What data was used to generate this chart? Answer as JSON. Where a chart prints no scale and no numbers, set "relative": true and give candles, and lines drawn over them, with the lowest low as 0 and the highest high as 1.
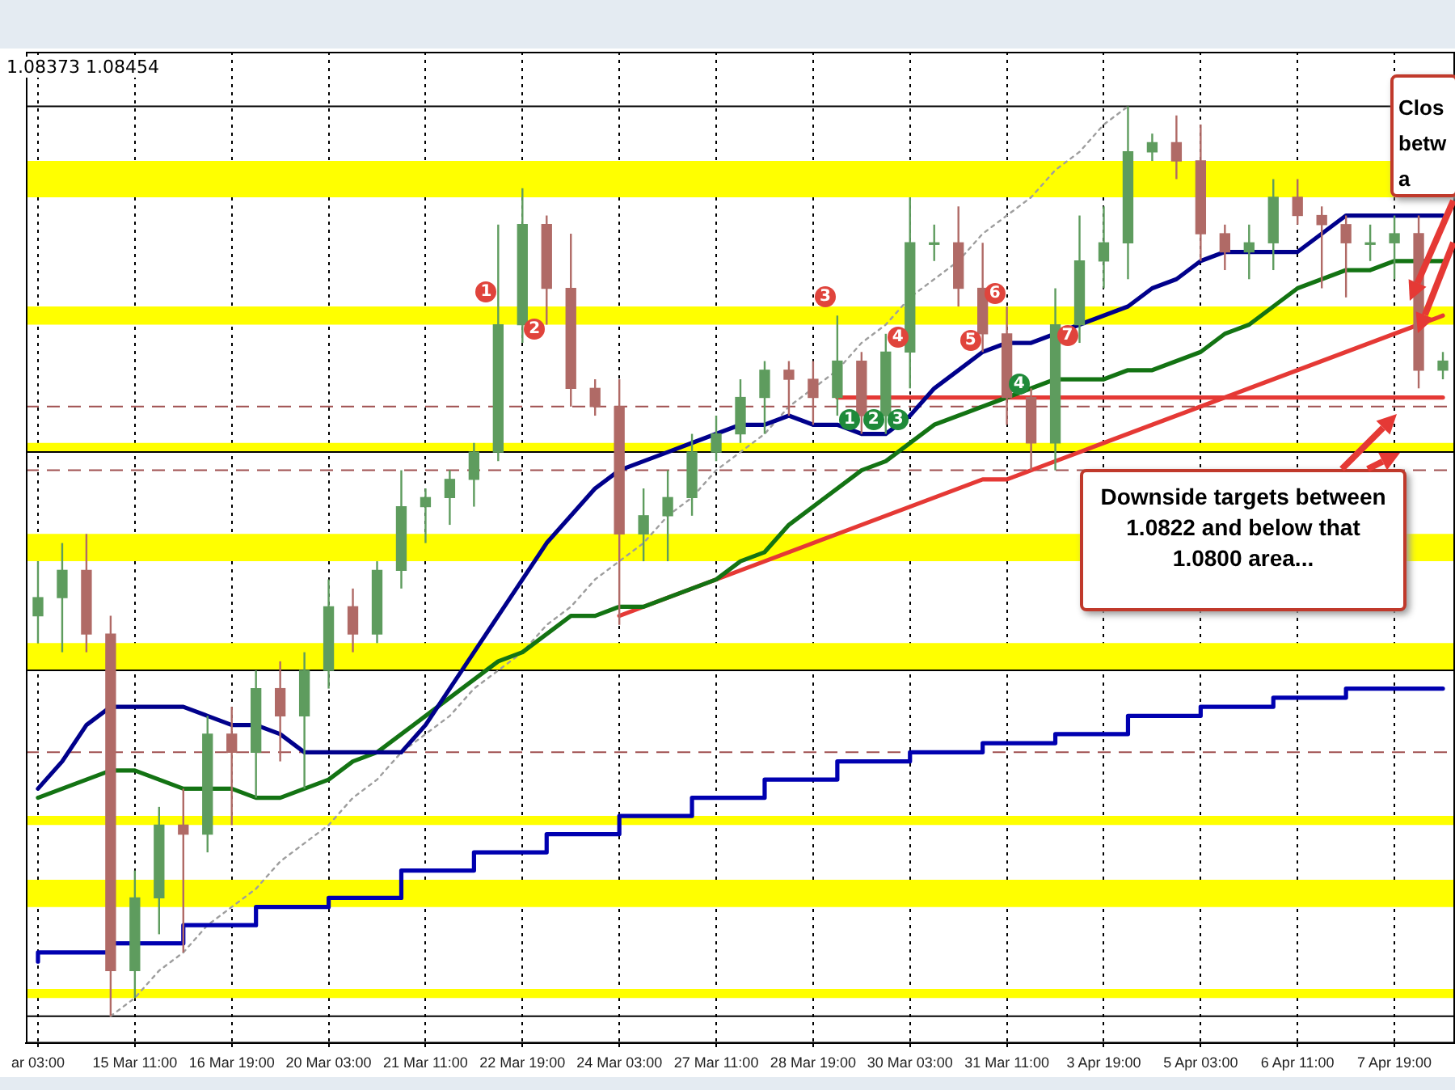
{
  "chart_data": {
    "type": "candlestick",
    "relative": true,
    "legend": false,
    "grid": "x",
    "marker": "none",
    "categories": [
      "ar 03:00",
      null,
      null,
      null,
      "15 Mar 11:00",
      null,
      null,
      null,
      "16 Mar 19:00",
      null,
      null,
      null,
      "20 Mar 03:00",
      null,
      null,
      null,
      "21 Mar 11:00",
      null,
      null,
      null,
      "22 Mar 19:00",
      null,
      null,
      null,
      "24 Mar 03:00",
      null,
      null,
      null,
      "27 Mar 11:00",
      null,
      null,
      null,
      "28 Mar 19:00",
      null,
      null,
      null,
      "30 Mar 03:00",
      null,
      null,
      null,
      "31 Mar 11:00",
      null,
      null,
      null,
      "3 Apr 19:00",
      null,
      null,
      null,
      "5 Apr 03:00",
      null,
      null,
      null,
      "6 Apr 11:00",
      null,
      null,
      null,
      "7 Apr 19:00",
      null,
      null
    ],
    "ohlc": [
      [
        0.44,
        0.5,
        0.41,
        0.46
      ],
      [
        0.46,
        0.52,
        0.4,
        0.49
      ],
      [
        0.49,
        0.53,
        0.4,
        0.42
      ],
      [
        0.42,
        0.44,
        0,
        0.05
      ],
      [
        0.05,
        0.16,
        0.02,
        0.13
      ],
      [
        0.13,
        0.23,
        0.09,
        0.21
      ],
      [
        0.21,
        0.25,
        0.07,
        0.2
      ],
      [
        0.2,
        0.33,
        0.18,
        0.31
      ],
      [
        0.31,
        0.34,
        0.21,
        0.29
      ],
      [
        0.29,
        0.38,
        0.24,
        0.36
      ],
      [
        0.36,
        0.39,
        0.28,
        0.33
      ],
      [
        0.33,
        0.4,
        0.25,
        0.38
      ],
      [
        0.38,
        0.48,
        0.36,
        0.45
      ],
      [
        0.45,
        0.47,
        0.4,
        0.42
      ],
      [
        0.42,
        0.5,
        0.41,
        0.49
      ],
      [
        0.49,
        0.6,
        0.47,
        0.56
      ],
      [
        0.56,
        0.58,
        0.52,
        0.57
      ],
      [
        0.57,
        0.6,
        0.54,
        0.59
      ],
      [
        0.59,
        0.63,
        0.56,
        0.62
      ],
      [
        0.62,
        0.87,
        0.61,
        0.76
      ],
      [
        0.76,
        0.91,
        0.74,
        0.87
      ],
      [
        0.87,
        0.88,
        0.76,
        0.8
      ],
      [
        0.8,
        0.86,
        0.67,
        0.69
      ],
      [
        0.69,
        0.7,
        0.66,
        0.67
      ],
      [
        0.67,
        0.7,
        0.43,
        0.53
      ],
      [
        0.53,
        0.58,
        0.5,
        0.55
      ],
      [
        0.55,
        0.6,
        0.5,
        0.57
      ],
      [
        0.57,
        0.64,
        0.55,
        0.62
      ],
      [
        0.62,
        0.66,
        0.61,
        0.64
      ],
      [
        0.64,
        0.7,
        0.63,
        0.68
      ],
      [
        0.68,
        0.72,
        0.64,
        0.71
      ],
      [
        0.71,
        0.72,
        0.66,
        0.7
      ],
      [
        0.7,
        0.72,
        0.65,
        0.68
      ],
      [
        0.68,
        0.77,
        0.66,
        0.72
      ],
      [
        0.72,
        0.73,
        0.64,
        0.66
      ],
      [
        0.66,
        0.75,
        0.64,
        0.73
      ],
      [
        0.73,
        0.9,
        0.69,
        0.85
      ],
      [
        0.85,
        0.87,
        0.83,
        0.85
      ],
      [
        0.85,
        0.89,
        0.78,
        0.8
      ],
      [
        0.8,
        0.85,
        0.73,
        0.75
      ],
      [
        0.75,
        0.78,
        0.65,
        0.68
      ],
      [
        0.68,
        0.69,
        0.6,
        0.63
      ],
      [
        0.63,
        0.8,
        0.6,
        0.76
      ],
      [
        0.76,
        0.88,
        0.74,
        0.83
      ],
      [
        0.83,
        0.89,
        0.8,
        0.85
      ],
      [
        0.85,
        1,
        0.81,
        0.95
      ],
      [
        0.95,
        0.97,
        0.94,
        0.96
      ],
      [
        0.96,
        0.99,
        0.92,
        0.94
      ],
      [
        0.94,
        0.98,
        0.83,
        0.86
      ],
      [
        0.86,
        0.87,
        0.82,
        0.84
      ],
      [
        0.84,
        0.87,
        0.81,
        0.85
      ],
      [
        0.85,
        0.92,
        0.82,
        0.9
      ],
      [
        0.9,
        0.92,
        0.87,
        0.88
      ],
      [
        0.88,
        0.89,
        0.8,
        0.87
      ],
      [
        0.87,
        0.88,
        0.79,
        0.85
      ],
      [
        0.85,
        0.87,
        0.83,
        0.85
      ],
      [
        0.85,
        0.88,
        0.81,
        0.86
      ],
      [
        0.86,
        0.88,
        0.69,
        0.71
      ],
      [
        0.71,
        0.73,
        0.7,
        0.72
      ]
    ],
    "series": [
      {
        "type": "line",
        "color": "#00008b",
        "values": [
          0.25,
          0.28,
          0.32,
          0.34,
          0.34,
          0.34,
          0.34,
          0.33,
          0.32,
          0.32,
          0.31,
          0.29,
          0.29,
          0.29,
          0.29,
          0.29,
          0.32,
          0.36,
          0.4,
          0.44,
          0.48,
          0.52,
          0.55,
          0.58,
          0.6,
          0.61,
          0.62,
          0.63,
          0.64,
          0.65,
          0.65,
          0.66,
          0.65,
          0.65,
          0.64,
          0.64,
          0.66,
          0.69,
          0.71,
          0.73,
          0.74,
          0.74,
          0.75,
          0.76,
          0.77,
          0.78,
          0.8,
          0.81,
          0.83,
          0.84,
          0.84,
          0.84,
          0.84,
          0.86,
          0.88,
          0.88,
          0.88,
          0.88,
          0.88
        ]
      },
      {
        "type": "line",
        "color": "#137313",
        "values": [
          0.24,
          0.25,
          0.26,
          0.27,
          0.27,
          0.26,
          0.25,
          0.25,
          0.25,
          0.24,
          0.24,
          0.25,
          0.26,
          0.28,
          0.29,
          0.31,
          0.33,
          0.35,
          0.37,
          0.39,
          0.4,
          0.42,
          0.44,
          0.44,
          0.45,
          0.45,
          0.46,
          0.47,
          0.48,
          0.5,
          0.51,
          0.54,
          0.56,
          0.58,
          0.6,
          0.61,
          0.63,
          0.65,
          0.66,
          0.67,
          0.68,
          0.69,
          0.7,
          0.7,
          0.7,
          0.71,
          0.71,
          0.72,
          0.73,
          0.75,
          0.76,
          0.78,
          0.8,
          0.81,
          0.82,
          0.82,
          0.83,
          0.83,
          0.83
        ]
      },
      {
        "type": "step",
        "color": "#0000b0",
        "values": [
          0.06,
          0.07,
          0.07,
          0.07,
          0.08,
          0.08,
          0.08,
          0.1,
          0.1,
          0.1,
          0.12,
          0.12,
          0.12,
          0.13,
          0.13,
          0.13,
          0.16,
          0.16,
          0.16,
          0.18,
          0.18,
          0.18,
          0.2,
          0.2,
          0.2,
          0.22,
          0.22,
          0.22,
          0.24,
          0.24,
          0.24,
          0.26,
          0.26,
          0.26,
          0.28,
          0.28,
          0.28,
          0.29,
          0.29,
          0.29,
          0.3,
          0.3,
          0.3,
          0.31,
          0.31,
          0.31,
          0.33,
          0.33,
          0.33,
          0.34,
          0.34,
          0.34,
          0.35,
          0.35,
          0.35,
          0.36,
          0.36,
          0.36,
          0.36
        ]
      },
      {
        "type": "line",
        "color": "#e53935",
        "values": [
          null,
          null,
          null,
          null,
          null,
          null,
          null,
          null,
          null,
          null,
          null,
          null,
          null,
          null,
          null,
          null,
          null,
          null,
          null,
          null,
          null,
          null,
          null,
          null,
          0.44,
          0.45,
          0.46,
          0.47,
          0.48,
          0.49,
          0.5,
          0.51,
          0.52,
          0.53,
          0.54,
          0.55,
          0.56,
          0.57,
          0.58,
          0.59,
          0.59,
          0.6,
          0.61,
          0.62,
          0.63,
          0.64,
          0.65,
          0.66,
          0.67,
          0.68,
          0.69,
          0.7,
          0.71,
          0.72,
          0.73,
          0.74,
          0.75,
          0.76,
          0.77
        ]
      },
      {
        "type": "line",
        "color": "#e53935",
        "values": [
          null,
          null,
          null,
          null,
          null,
          null,
          null,
          null,
          null,
          null,
          null,
          null,
          null,
          null,
          null,
          null,
          null,
          null,
          null,
          null,
          null,
          null,
          null,
          null,
          null,
          null,
          null,
          null,
          null,
          null,
          null,
          null,
          null,
          0.68,
          0.68,
          0.68,
          0.68,
          0.68,
          0.68,
          0.68,
          0.68,
          0.68,
          0.68,
          0.68,
          0.68,
          0.68,
          0.68,
          0.68,
          0.68,
          0.68,
          0.68,
          0.68,
          0.68,
          0.68,
          0.68,
          0.68,
          0.68,
          0.68,
          0.68
        ]
      },
      {
        "type": "line",
        "color": "#9e9e9e",
        "line_style": "dotted",
        "values": [
          null,
          null,
          null,
          0,
          0.02,
          0.05,
          0.07,
          0.1,
          0.12,
          0.14,
          0.17,
          0.19,
          0.21,
          0.24,
          0.26,
          0.29,
          0.31,
          0.33,
          0.36,
          0.38,
          0.4,
          0.43,
          0.45,
          0.48,
          0.5,
          0.52,
          0.55,
          0.57,
          0.6,
          0.62,
          0.64,
          0.67,
          0.69,
          0.71,
          0.74,
          0.76,
          0.79,
          0.81,
          0.83,
          0.86,
          0.88,
          0.9,
          0.93,
          0.95,
          0.98,
          1,
          null,
          null,
          null,
          null,
          null,
          null,
          null,
          null,
          null,
          null,
          null,
          null,
          null
        ]
      }
    ],
    "bands": [
      {
        "axis": "y",
        "from": 0.9,
        "to": 0.94,
        "color": "#ffff00"
      },
      {
        "axis": "y",
        "from": 0.76,
        "to": 0.78,
        "color": "#ffff00"
      },
      {
        "axis": "y",
        "from": 0.62,
        "to": 0.63,
        "color": "#ffff00"
      },
      {
        "axis": "y",
        "from": 0.5,
        "to": 0.53,
        "color": "#ffff00"
      },
      {
        "axis": "y",
        "from": 0.38,
        "to": 0.41,
        "color": "#ffff00"
      },
      {
        "axis": "y",
        "from": 0.21,
        "to": 0.22,
        "color": "#ffff00"
      },
      {
        "axis": "y",
        "from": 0.12,
        "to": 0.15,
        "color": "#ffff00"
      },
      {
        "axis": "y",
        "from": 0.02,
        "to": 0.03,
        "color": "#ffff00"
      }
    ],
    "ref_lines": [
      {
        "axis": "y",
        "value": 0.67,
        "color": "#a05050",
        "line_style": "dashed"
      },
      {
        "axis": "y",
        "value": 0.6,
        "color": "#a05050",
        "line_style": "dashed"
      },
      {
        "axis": "y",
        "value": 0.29,
        "color": "#a05050",
        "line_style": "dashed"
      },
      {
        "axis": "y",
        "value": 1,
        "color": "#000000",
        "line_style": "solid"
      },
      {
        "axis": "y",
        "value": 0.62,
        "color": "#000000",
        "line_style": "solid"
      },
      {
        "axis": "y",
        "value": 0.38,
        "color": "#000000",
        "line_style": "solid"
      },
      {
        "axis": "y",
        "value": 0,
        "color": "#000000",
        "line_style": "solid"
      }
    ],
    "annotations": [
      "1.08373 1.08454",
      "Downside targets between 1.0822 and below that 1.0800 area...",
      "Clos betw a",
      "1",
      "2",
      "3",
      "4",
      "5",
      "6",
      "7",
      "1",
      "2",
      "3",
      "4"
    ]
  }
}
